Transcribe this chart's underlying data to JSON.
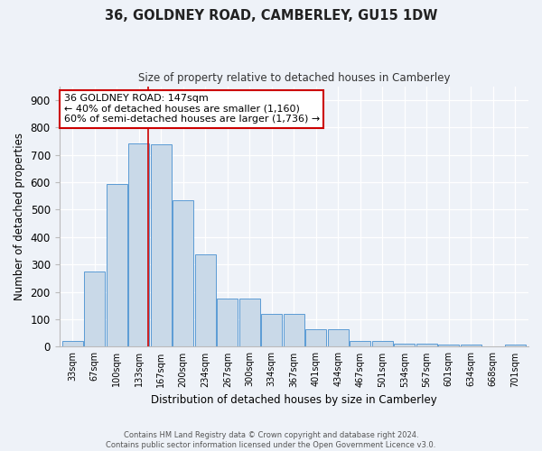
{
  "title": "36, GOLDNEY ROAD, CAMBERLEY, GU15 1DW",
  "subtitle": "Size of property relative to detached houses in Camberley",
  "xlabel": "Distribution of detached houses by size in Camberley",
  "ylabel": "Number of detached properties",
  "bar_color": "#c9d9e8",
  "bar_edge_color": "#5b9bd5",
  "categories": [
    "33sqm",
    "67sqm",
    "100sqm",
    "133sqm",
    "167sqm",
    "200sqm",
    "234sqm",
    "267sqm",
    "300sqm",
    "334sqm",
    "367sqm",
    "401sqm",
    "434sqm",
    "467sqm",
    "501sqm",
    "534sqm",
    "567sqm",
    "601sqm",
    "634sqm",
    "668sqm",
    "701sqm"
  ],
  "values": [
    22,
    273,
    595,
    740,
    737,
    535,
    338,
    175,
    175,
    120,
    120,
    65,
    65,
    22,
    22,
    12,
    12,
    7,
    7,
    0,
    7
  ],
  "ylim": [
    0,
    950
  ],
  "yticks": [
    0,
    100,
    200,
    300,
    400,
    500,
    600,
    700,
    800,
    900
  ],
  "property_line_x": 147,
  "annotation_text": "36 GOLDNEY ROAD: 147sqm\n← 40% of detached houses are smaller (1,160)\n60% of semi-detached houses are larger (1,736) →",
  "annotation_box_color": "#ffffff",
  "annotation_box_edge": "#cc0000",
  "footer_line1": "Contains HM Land Registry data © Crown copyright and database right 2024.",
  "footer_line2": "Contains public sector information licensed under the Open Government Licence v3.0.",
  "background_color": "#eef2f8",
  "grid_color": "#ffffff",
  "bin_width": 33
}
